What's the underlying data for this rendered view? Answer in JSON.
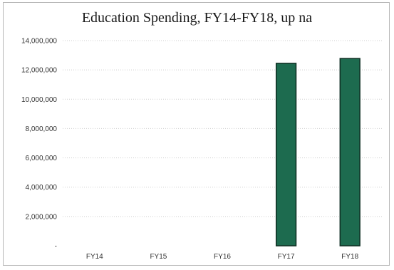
{
  "chart_data": {
    "type": "bar",
    "title": "Education Spending, FY14-FY18, up na",
    "xlabel": "",
    "ylabel": "",
    "categories": [
      "FY14",
      "FY15",
      "FY16",
      "FY17",
      "FY18"
    ],
    "values": [
      0,
      0,
      0,
      12450000,
      12780000
    ],
    "ylim": [
      0,
      14000000
    ],
    "yticks": [
      0,
      2000000,
      4000000,
      6000000,
      8000000,
      10000000,
      12000000,
      14000000
    ],
    "ytick_labels": [
      "-",
      "2,000,000",
      "4,000,000",
      "6,000,000",
      "8,000,000",
      "10,000,000",
      "12,000,000",
      "14,000,000"
    ],
    "grid": true,
    "legend": "none",
    "bar_color": "#1d6b4f",
    "bar_edge_color": "#0e2e22"
  }
}
